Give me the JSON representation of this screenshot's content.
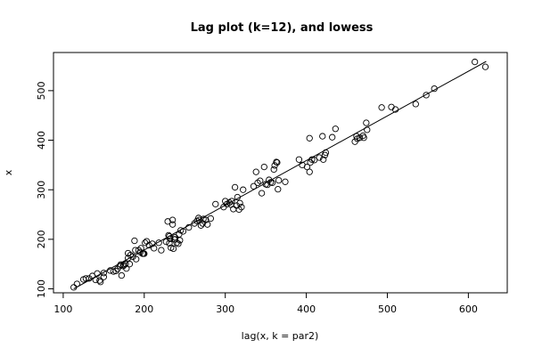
{
  "chart_data": {
    "type": "scatter",
    "title": "Lag plot (k=12), and lowess",
    "xlabel": "lag(x, k = par2)",
    "ylabel": "x",
    "xlim": [
      88,
      648
    ],
    "ylim": [
      92,
      577
    ],
    "xticks": [
      100,
      200,
      300,
      400,
      500,
      600
    ],
    "yticks": [
      100,
      200,
      300,
      400,
      500
    ],
    "grid": false,
    "point_style": "open-circle",
    "colors": {
      "points": "#000000",
      "line": "#000000",
      "frame": "#000000"
    },
    "series": [
      {
        "points": [
          [
            113,
            103
          ],
          [
            117,
            110
          ],
          [
            125,
            119
          ],
          [
            128,
            121
          ],
          [
            132,
            121
          ],
          [
            136,
            126
          ],
          [
            140,
            118
          ],
          [
            142,
            131
          ],
          [
            145,
            117
          ],
          [
            146,
            114
          ],
          [
            150,
            124
          ],
          [
            150,
            132
          ],
          [
            158,
            137
          ],
          [
            162,
            135
          ],
          [
            165,
            136
          ],
          [
            167,
            140
          ],
          [
            170,
            146
          ],
          [
            171,
            149
          ],
          [
            172,
            127
          ],
          [
            174,
            146
          ],
          [
            175,
            148
          ],
          [
            177,
            150
          ],
          [
            178,
            141
          ],
          [
            180,
            162
          ],
          [
            180,
            172
          ],
          [
            182,
            150
          ],
          [
            183,
            168
          ],
          [
            186,
            165
          ],
          [
            188,
            197
          ],
          [
            189,
            178
          ],
          [
            190,
            160
          ],
          [
            193,
            178
          ],
          [
            195,
            174
          ],
          [
            196,
            182
          ],
          [
            198,
            171
          ],
          [
            199,
            171
          ],
          [
            200,
            171
          ],
          [
            201,
            193
          ],
          [
            203,
            196
          ],
          [
            206,
            188
          ],
          [
            210,
            191
          ],
          [
            212,
            182
          ],
          [
            218,
            193
          ],
          [
            221,
            178
          ],
          [
            227,
            195
          ],
          [
            229,
            236
          ],
          [
            230,
            208
          ],
          [
            231,
            206
          ],
          [
            231,
            192
          ],
          [
            232,
            201
          ],
          [
            233,
            183
          ],
          [
            235,
            239
          ],
          [
            235,
            230
          ],
          [
            236,
            181
          ],
          [
            237,
            200
          ],
          [
            238,
            200
          ],
          [
            238,
            204
          ],
          [
            240,
            193
          ],
          [
            242,
            191
          ],
          [
            243,
            210
          ],
          [
            244,
            198
          ],
          [
            245,
            218
          ],
          [
            248,
            216
          ],
          [
            255,
            224
          ],
          [
            262,
            232
          ],
          [
            265,
            237
          ],
          [
            267,
            243
          ],
          [
            268,
            239
          ],
          [
            270,
            228
          ],
          [
            272,
            232
          ],
          [
            273,
            241
          ],
          [
            276,
            239
          ],
          [
            278,
            230
          ],
          [
            282,
            242
          ],
          [
            288,
            271
          ],
          [
            298,
            265
          ],
          [
            300,
            277
          ],
          [
            302,
            271
          ],
          [
            305,
            274
          ],
          [
            307,
            270
          ],
          [
            308,
            277
          ],
          [
            310,
            261
          ],
          [
            312,
            305
          ],
          [
            314,
            268
          ],
          [
            315,
            285
          ],
          [
            317,
            260
          ],
          [
            318,
            273
          ],
          [
            320,
            265
          ],
          [
            322,
            300
          ],
          [
            335,
            307
          ],
          [
            338,
            336
          ],
          [
            340,
            314
          ],
          [
            343,
            318
          ],
          [
            345,
            293
          ],
          [
            348,
            346
          ],
          [
            350,
            311
          ],
          [
            352,
            310
          ],
          [
            354,
            320
          ],
          [
            356,
            315
          ],
          [
            358,
            314
          ],
          [
            360,
            341
          ],
          [
            361,
            349
          ],
          [
            363,
            356
          ],
          [
            364,
            355
          ],
          [
            365,
            301
          ],
          [
            366,
            319
          ],
          [
            374,
            316
          ],
          [
            391,
            361
          ],
          [
            395,
            350
          ],
          [
            401,
            346
          ],
          [
            404,
            404
          ],
          [
            404,
            336
          ],
          [
            405,
            355
          ],
          [
            407,
            361
          ],
          [
            410,
            360
          ],
          [
            416,
            365
          ],
          [
            420,
            408
          ],
          [
            421,
            361
          ],
          [
            423,
            370
          ],
          [
            424,
            375
          ],
          [
            432,
            406
          ],
          [
            436,
            423
          ],
          [
            460,
            397
          ],
          [
            462,
            408
          ],
          [
            463,
            403
          ],
          [
            466,
            405
          ],
          [
            470,
            409
          ],
          [
            471,
            405
          ],
          [
            474,
            435
          ],
          [
            475,
            421
          ],
          [
            493,
            466
          ],
          [
            505,
            467
          ],
          [
            510,
            462
          ],
          [
            535,
            473
          ],
          [
            548,
            491
          ],
          [
            558,
            504
          ],
          [
            608,
            558
          ],
          [
            621,
            548
          ]
        ]
      }
    ],
    "lowess": [
      [
        113,
        100
      ],
      [
        622,
        559
      ]
    ]
  }
}
